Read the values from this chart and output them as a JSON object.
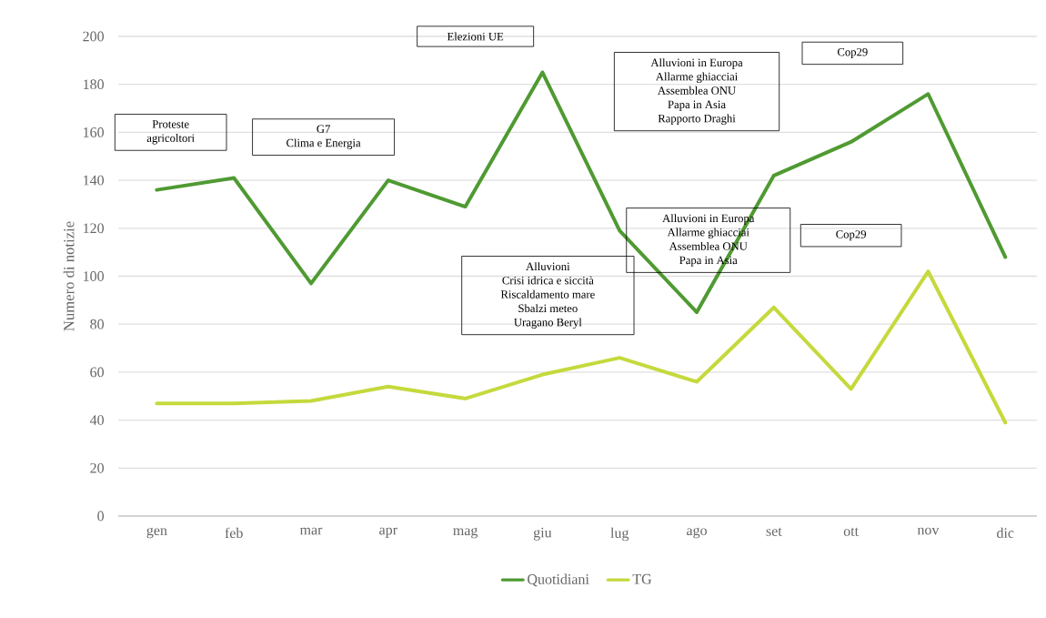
{
  "chart_data": {
    "type": "line",
    "ylabel": "Numero di notizie",
    "categories": [
      "gen",
      "feb",
      "mar",
      "apr",
      "mag",
      "giu",
      "lug",
      "ago",
      "set",
      "ott",
      "nov",
      "dic"
    ],
    "series": [
      {
        "name": "Quotidiani",
        "color": "#4f9a32",
        "values": [
          136,
          141,
          97,
          140,
          129,
          185,
          119,
          85,
          142,
          156,
          176,
          108
        ]
      },
      {
        "name": "TG",
        "color": "#c5d93c",
        "values": [
          47,
          47,
          48,
          54,
          49,
          59,
          66,
          56,
          87,
          53,
          102,
          39
        ]
      }
    ],
    "ylim": [
      0,
      200
    ],
    "yticks": [
      0,
      20,
      40,
      60,
      80,
      100,
      120,
      140,
      160,
      180,
      200
    ],
    "grid": "y",
    "legend": "bottom",
    "marker": "none",
    "line_style": "solid",
    "annotations": [
      "Proteste",
      "agricoltori",
      "G7",
      "Clima e Energia",
      "Elezioni UE",
      "Alluvioni in Europa",
      "Allarme ghiacciai",
      "Assemblea ONU",
      "Papa in Asia",
      "Rapporto Draghi",
      "Cop29",
      "Alluvioni in Europa",
      "Allarme ghiacciai",
      "Assemblea ONU",
      "Papa in Asia",
      "Cop29",
      "Alluvioni",
      "Crisi idrica e siccità",
      "Riscaldamento mare",
      "Sbalzi meteo",
      "Uragano Beryl"
    ]
  }
}
